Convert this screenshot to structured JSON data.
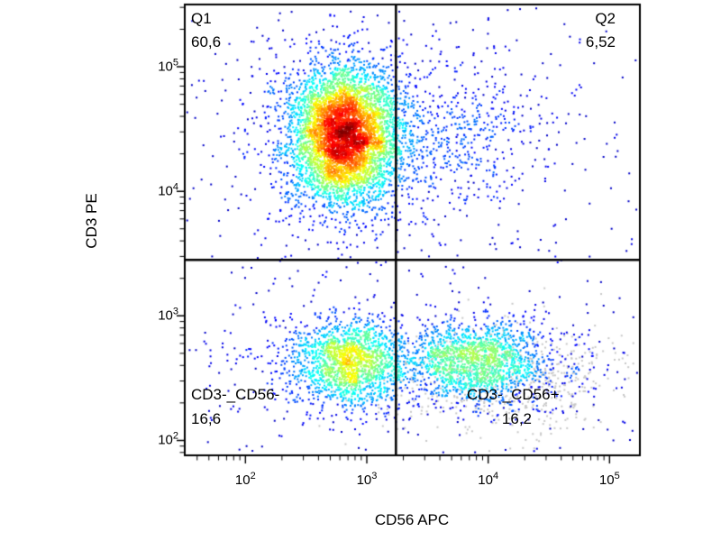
{
  "chart_data": {
    "type": "scatter",
    "subtype": "flow-cytometry-density-dot-plot",
    "xlabel": "CD56 APC",
    "ylabel": "CD3 PE",
    "x_scale": "log",
    "y_scale": "log",
    "x_log_range": [
      1.5,
      5.25
    ],
    "y_log_range": [
      1.88,
      5.5
    ],
    "x_ticks": [
      2,
      3,
      4,
      5
    ],
    "y_ticks": [
      2,
      3,
      4,
      5
    ],
    "tick_label_base": "10",
    "grid": false,
    "quadrant_gate": {
      "x_log": 3.24,
      "y_log": 3.45
    },
    "quadrants": {
      "q1": {
        "label": "Q1",
        "value": "60,6"
      },
      "q2": {
        "label": "Q2",
        "value": "6,52"
      },
      "q3": {
        "label": "CD3-_CD56-",
        "value": "16,6"
      },
      "q4": {
        "label": "CD3-_CD56+",
        "value": "16,2"
      }
    },
    "colors": {
      "density_colormap": "jet",
      "gray_population": "#c8c8c8",
      "axis": "#000000",
      "background": "#ffffff"
    },
    "populations": [
      {
        "name": "cd3pos-core",
        "cx": 2.82,
        "cy": 4.45,
        "sx": 0.22,
        "sy": 0.27,
        "count": 5200
      },
      {
        "name": "cd3pos-halo",
        "cx": 2.85,
        "cy": 4.42,
        "sx": 0.45,
        "sy": 0.5,
        "count": 700
      },
      {
        "name": "q2-scatter",
        "cx": 3.75,
        "cy": 4.45,
        "sx": 0.38,
        "sy": 0.3,
        "count": 420
      },
      {
        "name": "dn-core",
        "cx": 2.87,
        "cy": 2.62,
        "sx": 0.22,
        "sy": 0.17,
        "count": 1450
      },
      {
        "name": "dn-band",
        "cx": 2.75,
        "cy": 2.6,
        "sx": 0.45,
        "sy": 0.22,
        "count": 450
      },
      {
        "name": "nk-core",
        "cx": 3.88,
        "cy": 2.65,
        "sx": 0.28,
        "sy": 0.16,
        "count": 1300
      },
      {
        "name": "nk-band",
        "cx": 4.05,
        "cy": 2.6,
        "sx": 0.5,
        "sy": 0.2,
        "count": 420
      },
      {
        "name": "nk-gray",
        "cx": 4.1,
        "cy": 2.5,
        "sx": 0.5,
        "sy": 0.22,
        "count": 650,
        "color": "#c8c8c8"
      },
      {
        "name": "background",
        "type": "uniform",
        "count": 380
      }
    ]
  }
}
